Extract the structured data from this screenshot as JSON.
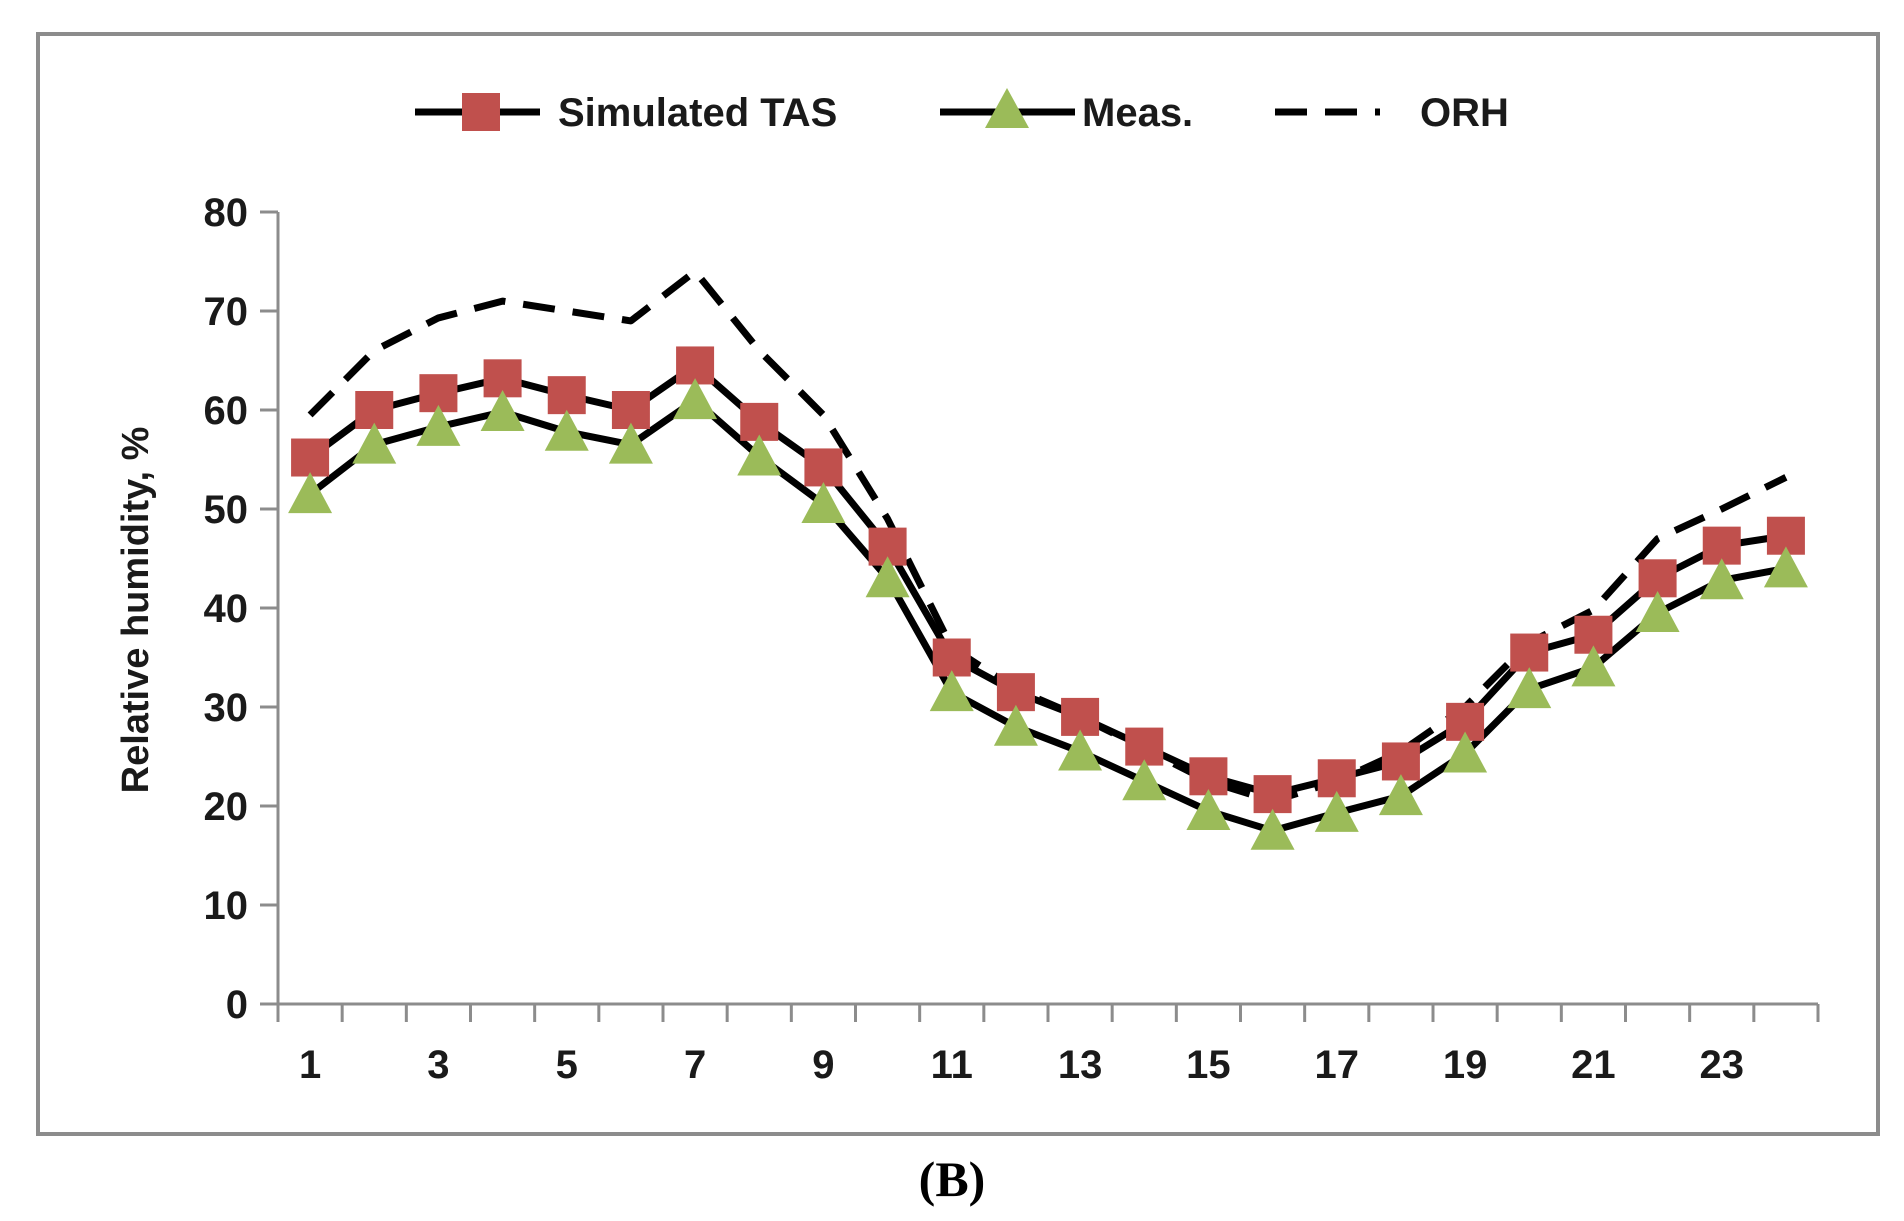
{
  "chart_data": {
    "type": "line",
    "title": "",
    "caption": "(B)",
    "xlabel": "",
    "ylabel": "Relative humidity, %",
    "x": [
      1,
      2,
      3,
      4,
      5,
      6,
      7,
      8,
      9,
      10,
      11,
      12,
      13,
      14,
      15,
      16,
      17,
      18,
      19,
      20,
      21,
      22,
      23,
      24
    ],
    "x_tick_labels": [
      "1",
      "3",
      "5",
      "7",
      "9",
      "11",
      "13",
      "15",
      "17",
      "19",
      "21",
      "23"
    ],
    "x_tick_values": [
      1,
      3,
      5,
      7,
      9,
      11,
      13,
      15,
      17,
      19,
      21,
      23
    ],
    "xlim": [
      0.5,
      24.5
    ],
    "ylim": [
      0,
      80
    ],
    "y_ticks": [
      0,
      10,
      20,
      30,
      40,
      50,
      60,
      70,
      80
    ],
    "y_tick_labels": [
      "0",
      "10",
      "20",
      "30",
      "40",
      "50",
      "60",
      "70",
      "80"
    ],
    "grid": false,
    "legend_position": "top",
    "series": [
      {
        "name": "Simulated TAS",
        "line_color": "#000000",
        "marker": "square",
        "marker_color": "#c0504d",
        "dash": "solid",
        "values": [
          55.2,
          60.0,
          61.7,
          63.2,
          61.5,
          60.0,
          64.5,
          58.8,
          54.2,
          46.2,
          35.0,
          31.5,
          29.0,
          26.0,
          23.0,
          21.2,
          22.8,
          24.5,
          28.5,
          35.5,
          37.3,
          43.0,
          46.3,
          47.3
        ]
      },
      {
        "name": "Meas.",
        "line_color": "#000000",
        "marker": "triangle",
        "marker_color": "#9bbb59",
        "dash": "solid",
        "values": [
          51.5,
          56.5,
          58.3,
          59.8,
          57.8,
          56.5,
          61.0,
          55.3,
          50.5,
          43.0,
          31.5,
          28.0,
          25.5,
          22.5,
          19.5,
          17.5,
          19.3,
          21.0,
          25.3,
          31.8,
          34.0,
          39.5,
          42.8,
          44.0
        ]
      },
      {
        "name": "ORH",
        "line_color": "#000000",
        "marker": "none",
        "dash": "dashed",
        "values": [
          59.5,
          66.0,
          69.3,
          71.0,
          70.0,
          69.0,
          74.0,
          66.0,
          59.5,
          49.0,
          36.0,
          31.8,
          29.0,
          25.8,
          22.5,
          20.5,
          22.5,
          25.5,
          30.0,
          36.5,
          39.8,
          47.0,
          50.0,
          53.2
        ]
      }
    ]
  }
}
